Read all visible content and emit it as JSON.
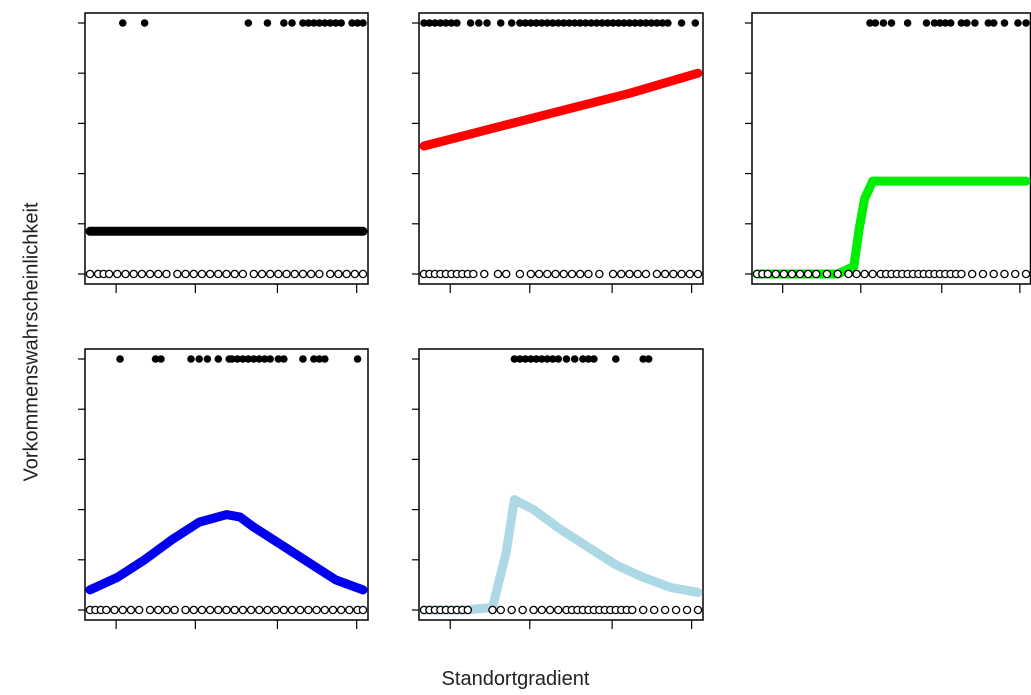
{
  "chart_data": {
    "type": "scatter",
    "xlabel": "Standortgradient",
    "ylabel": "Vorkommenswahrscheinlichkeit",
    "panels": [
      {
        "title": "",
        "ylim": [
          0,
          1
        ],
        "fit_curve": {
          "color": "#000000",
          "shape": "constant",
          "x": [
            0,
            1
          ],
          "y": [
            0.17,
            0.17
          ]
        },
        "presences_x": [
          0.12,
          0.2,
          0.58,
          0.65,
          0.71,
          0.74,
          0.78,
          0.8,
          0.82,
          0.84,
          0.86,
          0.88,
          0.9,
          0.92,
          0.96,
          0.98,
          1.0
        ],
        "absences_x": [
          0.0,
          0.03,
          0.05,
          0.07,
          0.1,
          0.13,
          0.16,
          0.19,
          0.22,
          0.25,
          0.28,
          0.32,
          0.35,
          0.38,
          0.41,
          0.44,
          0.47,
          0.5,
          0.53,
          0.56,
          0.6,
          0.63,
          0.66,
          0.69,
          0.72,
          0.75,
          0.78,
          0.81,
          0.84,
          0.88,
          0.91,
          0.94,
          0.97,
          1.0
        ]
      },
      {
        "title": "",
        "ylim": [
          0,
          1
        ],
        "fit_curve": {
          "color": "#ff0000",
          "shape": "linear",
          "x": [
            0,
            0.25,
            0.5,
            0.75,
            1.0
          ],
          "y": [
            0.51,
            0.58,
            0.65,
            0.72,
            0.8
          ]
        },
        "presences_x": [
          0.0,
          0.02,
          0.04,
          0.06,
          0.08,
          0.1,
          0.12,
          0.17,
          0.2,
          0.23,
          0.28,
          0.32,
          0.35,
          0.37,
          0.39,
          0.41,
          0.43,
          0.45,
          0.47,
          0.49,
          0.51,
          0.53,
          0.55,
          0.57,
          0.59,
          0.61,
          0.63,
          0.65,
          0.67,
          0.69,
          0.71,
          0.73,
          0.75,
          0.77,
          0.79,
          0.81,
          0.83,
          0.85,
          0.87,
          0.89,
          0.94,
          0.99
        ],
        "absences_x": [
          0.0,
          0.02,
          0.04,
          0.06,
          0.08,
          0.1,
          0.12,
          0.14,
          0.16,
          0.18,
          0.22,
          0.27,
          0.3,
          0.35,
          0.39,
          0.42,
          0.45,
          0.48,
          0.51,
          0.54,
          0.57,
          0.6,
          0.64,
          0.69,
          0.72,
          0.75,
          0.78,
          0.81,
          0.85,
          0.88,
          0.91,
          0.94,
          0.97,
          1.0
        ]
      },
      {
        "title": "",
        "ylim": [
          0,
          1
        ],
        "fit_curve": {
          "color": "#00ee00",
          "shape": "step",
          "x": [
            0,
            0.3,
            0.36,
            0.38,
            0.4,
            0.43,
            0.46,
            0.7,
            1.0
          ],
          "y": [
            0.0,
            0.0,
            0.03,
            0.18,
            0.3,
            0.37,
            0.37,
            0.37,
            0.37
          ]
        },
        "presences_x": [
          0.42,
          0.44,
          0.47,
          0.5,
          0.56,
          0.63,
          0.66,
          0.68,
          0.7,
          0.72,
          0.76,
          0.78,
          0.81,
          0.86,
          0.88,
          0.92,
          0.97,
          1.0
        ],
        "absences_x": [
          0.0,
          0.02,
          0.04,
          0.07,
          0.1,
          0.13,
          0.16,
          0.19,
          0.22,
          0.26,
          0.3,
          0.34,
          0.37,
          0.4,
          0.43,
          0.46,
          0.48,
          0.5,
          0.52,
          0.54,
          0.56,
          0.58,
          0.6,
          0.62,
          0.64,
          0.66,
          0.68,
          0.7,
          0.72,
          0.74,
          0.76,
          0.8,
          0.84,
          0.88,
          0.92,
          0.96,
          1.0
        ]
      },
      {
        "title": "",
        "ylim": [
          0,
          1
        ],
        "fit_curve": {
          "color": "#0000ee",
          "shape": "gaussian",
          "x": [
            0.0,
            0.1,
            0.2,
            0.3,
            0.4,
            0.5,
            0.55,
            0.6,
            0.7,
            0.8,
            0.9,
            1.0
          ],
          "y": [
            0.08,
            0.13,
            0.2,
            0.28,
            0.35,
            0.38,
            0.37,
            0.33,
            0.26,
            0.19,
            0.12,
            0.08
          ]
        },
        "presences_x": [
          0.11,
          0.24,
          0.26,
          0.37,
          0.4,
          0.43,
          0.47,
          0.51,
          0.52,
          0.54,
          0.56,
          0.58,
          0.6,
          0.62,
          0.64,
          0.66,
          0.69,
          0.71,
          0.78,
          0.82,
          0.84,
          0.86,
          0.98
        ],
        "absences_x": [
          0.0,
          0.02,
          0.04,
          0.06,
          0.09,
          0.12,
          0.15,
          0.18,
          0.22,
          0.25,
          0.28,
          0.31,
          0.35,
          0.38,
          0.41,
          0.44,
          0.47,
          0.5,
          0.53,
          0.56,
          0.59,
          0.62,
          0.65,
          0.68,
          0.71,
          0.74,
          0.77,
          0.8,
          0.83,
          0.86,
          0.89,
          0.92,
          0.95,
          0.98,
          1.0
        ]
      },
      {
        "title": "",
        "ylim": [
          0,
          1
        ],
        "fit_curve": {
          "color": "#add8e6",
          "shape": "skewed",
          "x": [
            0.0,
            0.15,
            0.25,
            0.3,
            0.33,
            0.4,
            0.5,
            0.6,
            0.7,
            0.8,
            0.9,
            1.0
          ],
          "y": [
            0.0,
            0.0,
            0.01,
            0.23,
            0.44,
            0.4,
            0.32,
            0.25,
            0.18,
            0.13,
            0.09,
            0.07
          ]
        },
        "presences_x": [
          0.33,
          0.35,
          0.37,
          0.39,
          0.41,
          0.43,
          0.45,
          0.47,
          0.49,
          0.52,
          0.55,
          0.58,
          0.6,
          0.62,
          0.7,
          0.8,
          0.82
        ],
        "absences_x": [
          0.0,
          0.02,
          0.04,
          0.06,
          0.08,
          0.1,
          0.12,
          0.14,
          0.16,
          0.25,
          0.28,
          0.32,
          0.36,
          0.4,
          0.43,
          0.46,
          0.49,
          0.52,
          0.54,
          0.56,
          0.58,
          0.6,
          0.62,
          0.64,
          0.66,
          0.68,
          0.7,
          0.72,
          0.74,
          0.76,
          0.8,
          0.84,
          0.88,
          0.92,
          0.96,
          1.0
        ]
      }
    ]
  }
}
